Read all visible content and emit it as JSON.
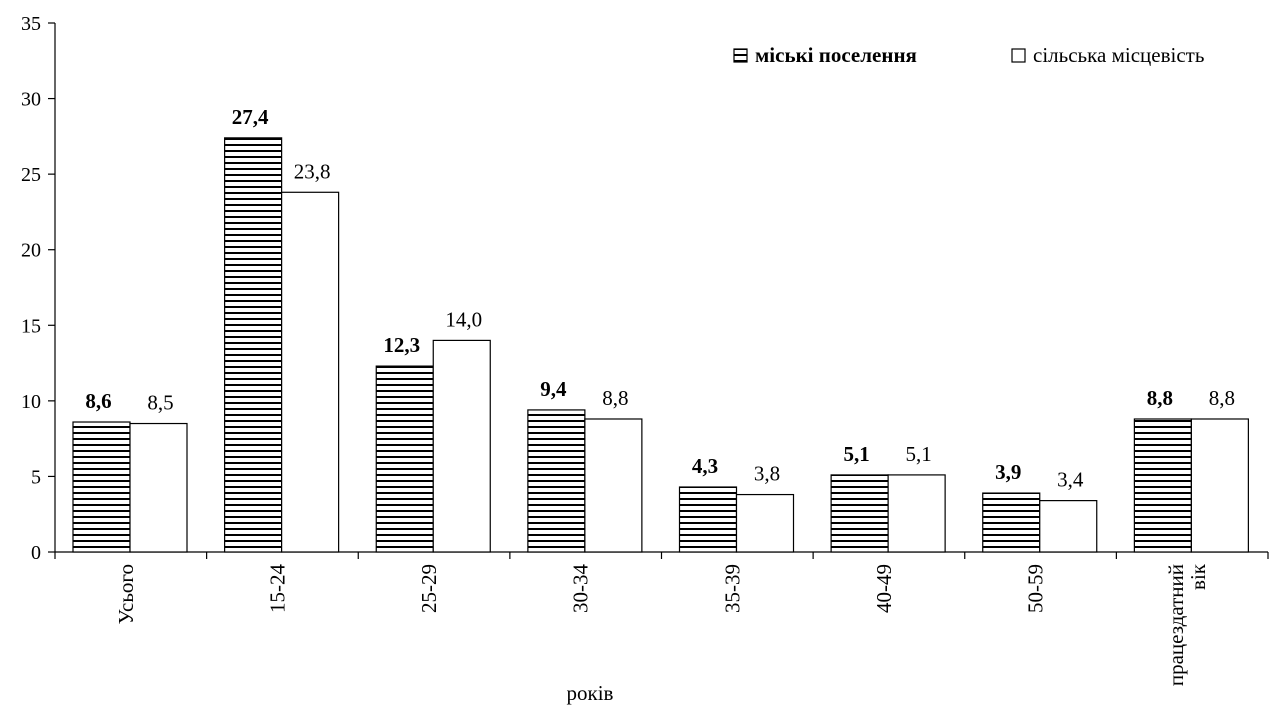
{
  "chart_data": {
    "type": "bar",
    "categories": [
      "Усього",
      "15-24",
      "25-29",
      "30-34",
      "35-39",
      "40-49",
      "50-59",
      [
        "працездатний",
        "вік"
      ]
    ],
    "series": [
      {
        "name": "міські поселення",
        "values": [
          8.6,
          27.4,
          12.3,
          9.4,
          4.3,
          5.1,
          3.9,
          8.8
        ],
        "labels": [
          "8,6",
          "27,4",
          "12,3",
          "9,4",
          "4,3",
          "5,1",
          "3,9",
          "8,8"
        ]
      },
      {
        "name": "сільська місцевість",
        "values": [
          8.5,
          23.8,
          14.0,
          8.8,
          3.8,
          5.1,
          3.4,
          8.8
        ],
        "labels": [
          "8,5",
          "23,8",
          "14,0",
          "8,8",
          "3,8",
          "5,1",
          "3,4",
          "8,8"
        ]
      }
    ],
    "xlabel": "років",
    "ylabel": "",
    "ylim": [
      0,
      35
    ],
    "yticks": [
      0,
      5,
      10,
      15,
      20,
      25,
      30,
      35
    ],
    "grid": false,
    "legend_position": "top-right",
    "colors": {
      "series_a_fill": "#ffffff",
      "series_a_hatch": "#000000",
      "series_b_fill": "#ffffff",
      "axis": "#000000"
    }
  }
}
